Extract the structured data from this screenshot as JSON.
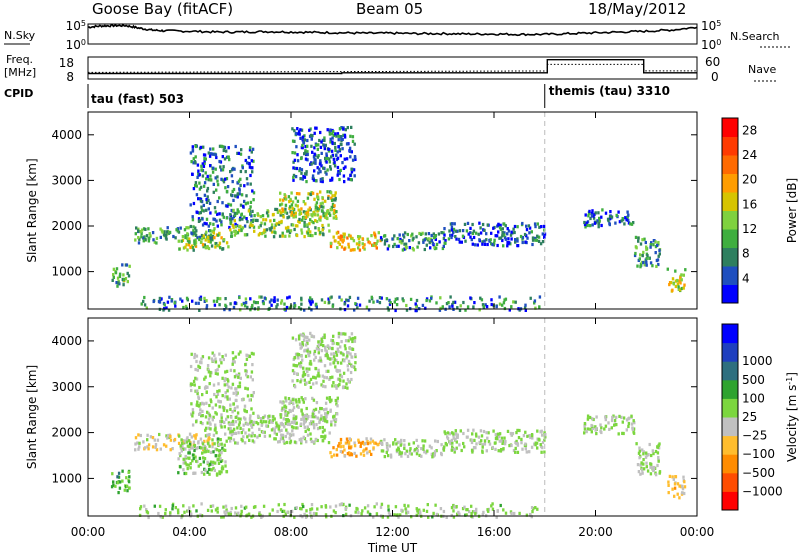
{
  "header": {
    "station": "Goose Bay (fitACF)",
    "beam": "Beam 05",
    "date": "18/May/2012"
  },
  "top_labels": {
    "nsky": "N.Sky",
    "nsky_ticks": [
      "10^5",
      "10^0"
    ],
    "nsearch": "N.Search",
    "freq_label": "Freq.",
    "freq_unit": "[MHz]",
    "freq_ticks": [
      "18",
      "8"
    ],
    "nave_label": "Nave",
    "nave_ticks": [
      "60",
      "0"
    ],
    "cpid_label": "CPID",
    "cpid_left": "tau (fast) 503",
    "cpid_right": "themis (tau) 3310"
  },
  "chart_data": [
    {
      "type": "heatmap",
      "panel": "power",
      "ylabel": "Slant Range [km]",
      "ylim": [
        180,
        4500
      ],
      "yticks": [
        1000,
        2000,
        3000,
        4000
      ],
      "xlim_hours": [
        0,
        24
      ],
      "xtick_labels": [
        "00:00",
        "04:00",
        "08:00",
        "12:00",
        "16:00",
        "20:00",
        "00:00"
      ],
      "colorbar": {
        "label": "Power [dB]",
        "range": [
          0,
          30
        ],
        "tick_values": [
          4,
          8,
          12,
          16,
          20,
          24,
          28
        ],
        "tick_labels": [
          "4",
          "8",
          "12",
          "16",
          "20",
          "24",
          "28"
        ],
        "colors": [
          "#0000ff",
          "#1f4fbf",
          "#2e7f5f",
          "#3fae3f",
          "#7fd13f",
          "#d6c400",
          "#ff9d00",
          "#ff6a00",
          "#ff3a00",
          "#ff0000"
        ]
      },
      "regions": [
        {
          "t0": 0.9,
          "t1": 1.6,
          "r0": 700,
          "r1": 1200,
          "power": 10
        },
        {
          "t0": 1.8,
          "t1": 5.0,
          "r0": 1650,
          "r1": 2000,
          "power": 9
        },
        {
          "t0": 3.5,
          "t1": 5.5,
          "r0": 1500,
          "r1": 1900,
          "power": 13
        },
        {
          "t0": 4.0,
          "t1": 6.5,
          "r0": 2000,
          "r1": 3800,
          "power": 6
        },
        {
          "t0": 5.5,
          "t1": 9.5,
          "r0": 1800,
          "r1": 2400,
          "power": 12
        },
        {
          "t0": 7.5,
          "t1": 9.8,
          "r0": 2200,
          "r1": 2800,
          "power": 14
        },
        {
          "t0": 9.5,
          "t1": 11.5,
          "r0": 1500,
          "r1": 1900,
          "power": 18
        },
        {
          "t0": 11.5,
          "t1": 14.0,
          "r0": 1500,
          "r1": 1900,
          "power": 8
        },
        {
          "t0": 8.0,
          "t1": 10.5,
          "r0": 3000,
          "r1": 4200,
          "power": 5
        },
        {
          "t0": 14.0,
          "t1": 18.0,
          "r0": 1600,
          "r1": 2100,
          "power": 5
        },
        {
          "t0": 19.5,
          "t1": 21.5,
          "r0": 2000,
          "r1": 2400,
          "power": 5
        },
        {
          "t0": 21.5,
          "t1": 22.5,
          "r0": 1100,
          "r1": 1800,
          "power": 9
        },
        {
          "t0": 22.8,
          "t1": 23.5,
          "r0": 600,
          "r1": 1100,
          "power": 15
        },
        {
          "t0": 2.0,
          "t1": 17.8,
          "r0": 180,
          "r1": 480,
          "power": 7
        }
      ]
    },
    {
      "type": "heatmap",
      "panel": "velocity",
      "ylabel": "Slant Range [km]",
      "ylim": [
        180,
        4500
      ],
      "yticks": [
        1000,
        2000,
        3000,
        4000
      ],
      "xlim_hours": [
        0,
        24
      ],
      "xtick_labels": [
        "00:00",
        "04:00",
        "08:00",
        "12:00",
        "16:00",
        "20:00",
        "00:00"
      ],
      "xlabel": "Time UT",
      "colorbar": {
        "label": "Velocity [m s^-1]",
        "range": [
          -1200,
          1200
        ],
        "tick_values": [
          -1000,
          -500,
          -100,
          -25,
          25,
          100,
          500,
          1000
        ],
        "tick_labels": [
          "−1000",
          "−500",
          "−100",
          "−25",
          "25",
          "100",
          "500",
          "1000"
        ],
        "colors": [
          "#ff0000",
          "#ff4d00",
          "#ff8c00",
          "#ffbd2e",
          "#c0c0c0",
          "#7cd63f",
          "#2fa32f",
          "#2e6f7f",
          "#1f3fbf",
          "#0000ff"
        ]
      },
      "regions": [
        {
          "t0": 0.9,
          "t1": 1.6,
          "r0": 700,
          "r1": 1200,
          "velocity": 300
        },
        {
          "t0": 1.8,
          "t1": 5.0,
          "r0": 1650,
          "r1": 2000,
          "velocity": -200
        },
        {
          "t0": 3.5,
          "t1": 5.5,
          "r0": 1100,
          "r1": 1900,
          "velocity": 120
        },
        {
          "t0": 4.0,
          "t1": 6.5,
          "r0": 2000,
          "r1": 3800,
          "velocity": 0
        },
        {
          "t0": 5.5,
          "t1": 9.5,
          "r0": 1800,
          "r1": 2400,
          "velocity": 0
        },
        {
          "t0": 7.5,
          "t1": 9.8,
          "r0": 2200,
          "r1": 2800,
          "velocity": 0
        },
        {
          "t0": 9.5,
          "t1": 11.5,
          "r0": 1500,
          "r1": 1900,
          "velocity": -400
        },
        {
          "t0": 11.5,
          "t1": 14.0,
          "r0": 1500,
          "r1": 1900,
          "velocity": 0
        },
        {
          "t0": 8.0,
          "t1": 10.5,
          "r0": 3000,
          "r1": 4200,
          "velocity": 0
        },
        {
          "t0": 14.0,
          "t1": 18.0,
          "r0": 1600,
          "r1": 2100,
          "velocity": 0
        },
        {
          "t0": 19.5,
          "t1": 21.5,
          "r0": 2000,
          "r1": 2400,
          "velocity": 0
        },
        {
          "t0": 21.5,
          "t1": 22.5,
          "r0": 1100,
          "r1": 1800,
          "velocity": 0
        },
        {
          "t0": 22.8,
          "t1": 23.5,
          "r0": 600,
          "r1": 1100,
          "velocity": -300
        },
        {
          "t0": 2.0,
          "t1": 17.8,
          "r0": 180,
          "r1": 480,
          "velocity": 60
        }
      ]
    },
    {
      "type": "line",
      "panel": "nsky-nsearch",
      "ylim_log10": [
        0,
        5
      ],
      "x_hours": [
        0,
        0.5,
        1.0,
        1.5,
        2.0,
        2.5,
        3,
        4,
        5,
        6,
        7,
        8,
        9,
        10,
        11,
        12,
        13,
        14,
        15,
        16,
        17,
        18,
        19,
        20,
        21,
        22,
        23,
        24
      ],
      "series": [
        {
          "values_log10": [
            4.2,
            4.5,
            4.6,
            4.6,
            4.0,
            3.5,
            3.3,
            3.2,
            3.0,
            3.0,
            3.1,
            3.0,
            2.9,
            2.8,
            2.7,
            2.7,
            2.6,
            2.6,
            2.5,
            2.5,
            2.4,
            2.4,
            2.6,
            2.8,
            3.0,
            3.2,
            3.5,
            4.2
          ]
        }
      ]
    },
    {
      "type": "line",
      "panel": "freq-nave",
      "x_hours": [
        0,
        4.0,
        7.0,
        10.0,
        14.0,
        18.0,
        21.9,
        22.0,
        24
      ],
      "freq_ylim": [
        8,
        18
      ],
      "nave_ylim": [
        0,
        60
      ],
      "series": [
        {
          "values_freq": [
            10.5,
            10.5,
            10.5,
            10.8,
            10.8,
            10.8,
            10.8,
            10.8,
            10.8
          ]
        },
        {
          "values_nave": [
            18,
            18,
            18,
            20,
            22,
            22,
            22,
            22,
            22
          ]
        }
      ],
      "freq_step": {
        "t0": 18.1,
        "t1": 21.9,
        "value": 16.8
      },
      "nave_step": {
        "t0": 18.1,
        "t1": 21.9,
        "value": 40
      },
      "cpid_change_hour": 18.0
    }
  ]
}
